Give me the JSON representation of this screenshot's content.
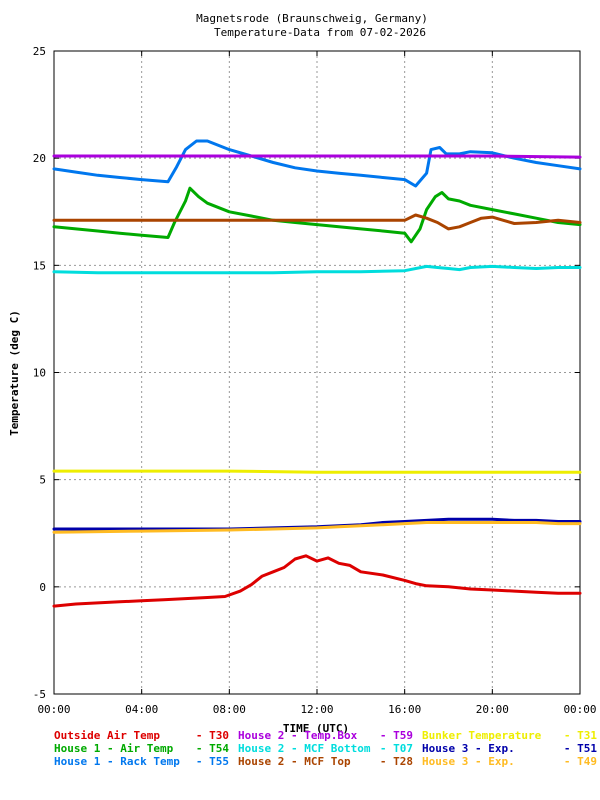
{
  "chart_data": {
    "type": "line",
    "title": "Magnetsrode (Braunschweig, Germany)",
    "subtitle": "Temperature-Data from 07-02-2026",
    "xlabel": "TIME (UTC)",
    "ylabel": "Temperature (deg C)",
    "xlim": [
      0,
      24
    ],
    "ylim": [
      -5,
      25
    ],
    "grid": true,
    "legend_position": "bottom",
    "x_ticks": [
      "00:00",
      "04:00",
      "08:00",
      "12:00",
      "16:00",
      "20:00",
      "00:00"
    ],
    "y_ticks": [
      "-5",
      "0",
      "5",
      "10",
      "15",
      "20",
      "25"
    ],
    "series": [
      {
        "name": "Outside Air Temp",
        "sensor": "T30",
        "color": "#dd0000",
        "points": [
          [
            0,
            -0.9
          ],
          [
            1,
            -0.8
          ],
          [
            2,
            -0.75
          ],
          [
            3,
            -0.7
          ],
          [
            4,
            -0.65
          ],
          [
            5,
            -0.6
          ],
          [
            6,
            -0.55
          ],
          [
            7,
            -0.5
          ],
          [
            7.8,
            -0.45
          ],
          [
            8.5,
            -0.2
          ],
          [
            9,
            0.1
          ],
          [
            9.5,
            0.5
          ],
          [
            10,
            0.7
          ],
          [
            10.5,
            0.9
          ],
          [
            11,
            1.3
          ],
          [
            11.5,
            1.45
          ],
          [
            12,
            1.2
          ],
          [
            12.5,
            1.35
          ],
          [
            13,
            1.1
          ],
          [
            13.5,
            1.0
          ],
          [
            14,
            0.7
          ],
          [
            15,
            0.55
          ],
          [
            16,
            0.3
          ],
          [
            16.5,
            0.15
          ],
          [
            17,
            0.05
          ],
          [
            18,
            0.0
          ],
          [
            19,
            -0.1
          ],
          [
            20,
            -0.15
          ],
          [
            21,
            -0.2
          ],
          [
            22,
            -0.25
          ],
          [
            23,
            -0.3
          ],
          [
            24,
            -0.3
          ]
        ]
      },
      {
        "name": "House 1 - Air  Temp",
        "sensor": "T54",
        "color": "#00aa00",
        "points": [
          [
            0,
            16.8
          ],
          [
            1,
            16.7
          ],
          [
            2,
            16.6
          ],
          [
            3,
            16.5
          ],
          [
            4,
            16.4
          ],
          [
            5.2,
            16.3
          ],
          [
            5.5,
            17.0
          ],
          [
            6,
            18.0
          ],
          [
            6.2,
            18.6
          ],
          [
            6.6,
            18.2
          ],
          [
            7,
            17.9
          ],
          [
            8,
            17.5
          ],
          [
            9,
            17.3
          ],
          [
            10,
            17.1
          ],
          [
            11,
            17.0
          ],
          [
            12,
            16.9
          ],
          [
            13,
            16.8
          ],
          [
            14,
            16.7
          ],
          [
            15,
            16.6
          ],
          [
            16,
            16.5
          ],
          [
            16.3,
            16.1
          ],
          [
            16.7,
            16.7
          ],
          [
            17,
            17.6
          ],
          [
            17.4,
            18.2
          ],
          [
            17.7,
            18.4
          ],
          [
            18,
            18.1
          ],
          [
            18.5,
            18.0
          ],
          [
            19,
            17.8
          ],
          [
            20,
            17.6
          ],
          [
            21,
            17.4
          ],
          [
            22,
            17.2
          ],
          [
            23,
            17.0
          ],
          [
            24,
            16.9
          ]
        ]
      },
      {
        "name": "House 1 - Rack Temp",
        "sensor": "T55",
        "color": "#0077ee",
        "points": [
          [
            0,
            19.5
          ],
          [
            1,
            19.35
          ],
          [
            2,
            19.2
          ],
          [
            3,
            19.1
          ],
          [
            4,
            19.0
          ],
          [
            5.2,
            18.9
          ],
          [
            5.6,
            19.6
          ],
          [
            6,
            20.4
          ],
          [
            6.5,
            20.8
          ],
          [
            7,
            20.8
          ],
          [
            8,
            20.4
          ],
          [
            9,
            20.1
          ],
          [
            10,
            19.8
          ],
          [
            11,
            19.55
          ],
          [
            12,
            19.4
          ],
          [
            13,
            19.3
          ],
          [
            14,
            19.2
          ],
          [
            15,
            19.1
          ],
          [
            16,
            19.0
          ],
          [
            16.5,
            18.7
          ],
          [
            17,
            19.3
          ],
          [
            17.2,
            20.4
          ],
          [
            17.6,
            20.5
          ],
          [
            17.9,
            20.2
          ],
          [
            18.5,
            20.2
          ],
          [
            19,
            20.3
          ],
          [
            20,
            20.25
          ],
          [
            21,
            20.0
          ],
          [
            22,
            19.8
          ],
          [
            23,
            19.65
          ],
          [
            24,
            19.5
          ]
        ]
      },
      {
        "name": "House 2 - Temp.Box",
        "sensor": "T59",
        "color": "#aa00dd",
        "points": [
          [
            0,
            20.1
          ],
          [
            4,
            20.1
          ],
          [
            8,
            20.1
          ],
          [
            12,
            20.1
          ],
          [
            16,
            20.1
          ],
          [
            20,
            20.1
          ],
          [
            24,
            20.05
          ]
        ]
      },
      {
        "name": "House 2 - MCF Bottom",
        "sensor": "T07",
        "color": "#00dddd",
        "points": [
          [
            0,
            14.7
          ],
          [
            2,
            14.65
          ],
          [
            4,
            14.65
          ],
          [
            6,
            14.65
          ],
          [
            8,
            14.65
          ],
          [
            10,
            14.65
          ],
          [
            12,
            14.7
          ],
          [
            14,
            14.7
          ],
          [
            16,
            14.75
          ],
          [
            17,
            14.95
          ],
          [
            17.5,
            14.9
          ],
          [
            18,
            14.85
          ],
          [
            18.5,
            14.8
          ],
          [
            19,
            14.9
          ],
          [
            20,
            14.95
          ],
          [
            21,
            14.9
          ],
          [
            22,
            14.85
          ],
          [
            23,
            14.9
          ],
          [
            24,
            14.9
          ]
        ]
      },
      {
        "name": "House 2 - MCF Top",
        "sensor": "T28",
        "color": "#aa4400",
        "points": [
          [
            0,
            17.1
          ],
          [
            2,
            17.1
          ],
          [
            4,
            17.1
          ],
          [
            6,
            17.1
          ],
          [
            8,
            17.1
          ],
          [
            10,
            17.1
          ],
          [
            12,
            17.1
          ],
          [
            14,
            17.1
          ],
          [
            16,
            17.1
          ],
          [
            16.5,
            17.35
          ],
          [
            17,
            17.2
          ],
          [
            17.5,
            17.0
          ],
          [
            18,
            16.7
          ],
          [
            18.5,
            16.8
          ],
          [
            19,
            17.0
          ],
          [
            19.5,
            17.2
          ],
          [
            20,
            17.25
          ],
          [
            20.5,
            17.1
          ],
          [
            21,
            16.95
          ],
          [
            22,
            17.0
          ],
          [
            23,
            17.1
          ],
          [
            24,
            17.0
          ]
        ]
      },
      {
        "name": "Bunker Temperature",
        "sensor": "T31",
        "color": "#eeee00",
        "points": [
          [
            0,
            5.4
          ],
          [
            4,
            5.4
          ],
          [
            8,
            5.4
          ],
          [
            12,
            5.35
          ],
          [
            16,
            5.35
          ],
          [
            20,
            5.35
          ],
          [
            24,
            5.35
          ]
        ]
      },
      {
        "name": "House 3 - Exp.",
        "sensor": "T51",
        "color": "#0000aa",
        "points": [
          [
            0,
            2.7
          ],
          [
            4,
            2.7
          ],
          [
            8,
            2.7
          ],
          [
            10,
            2.75
          ],
          [
            12,
            2.8
          ],
          [
            13,
            2.85
          ],
          [
            14,
            2.9
          ],
          [
            15,
            3.0
          ],
          [
            16,
            3.05
          ],
          [
            17,
            3.1
          ],
          [
            18,
            3.15
          ],
          [
            19,
            3.15
          ],
          [
            20,
            3.15
          ],
          [
            21,
            3.1
          ],
          [
            22,
            3.1
          ],
          [
            23,
            3.05
          ],
          [
            24,
            3.05
          ]
        ]
      },
      {
        "name": "House 3 - Exp.",
        "sensor": "T49",
        "color": "#ffbb22",
        "points": [
          [
            0,
            2.55
          ],
          [
            4,
            2.6
          ],
          [
            8,
            2.65
          ],
          [
            10,
            2.7
          ],
          [
            12,
            2.75
          ],
          [
            13,
            2.8
          ],
          [
            14,
            2.85
          ],
          [
            15,
            2.9
          ],
          [
            16,
            2.95
          ],
          [
            17,
            3.0
          ],
          [
            18,
            3.0
          ],
          [
            19,
            3.0
          ],
          [
            20,
            3.0
          ],
          [
            21,
            3.0
          ],
          [
            22,
            3.0
          ],
          [
            23,
            2.95
          ],
          [
            24,
            2.95
          ]
        ]
      }
    ]
  }
}
